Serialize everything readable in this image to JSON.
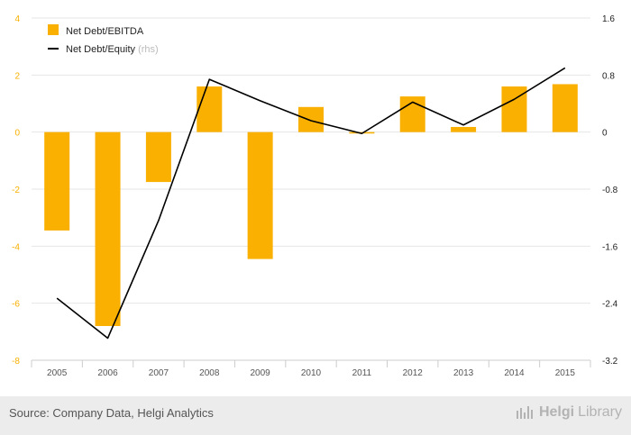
{
  "chart_data": {
    "type": "bar+line",
    "categories": [
      "2005",
      "2006",
      "2007",
      "2008",
      "2009",
      "2010",
      "2011",
      "2012",
      "2013",
      "2014",
      "2015"
    ],
    "series": [
      {
        "name": "Net Debt/EBITDA",
        "kind": "bar",
        "axis": "left",
        "color": "#f9b000",
        "values": [
          -3.45,
          -6.8,
          -1.75,
          1.6,
          -4.45,
          0.88,
          -0.05,
          1.25,
          0.18,
          1.6,
          1.68
        ]
      },
      {
        "name": "Net Debt/Equity",
        "kind": "line",
        "axis": "right",
        "color": "#000000",
        "values": [
          -2.33,
          -2.89,
          -1.24,
          0.74,
          0.44,
          0.16,
          -0.02,
          0.42,
          0.1,
          0.46,
          0.9
        ]
      }
    ],
    "legend": {
      "position": "top-left",
      "items": [
        {
          "label": "Net Debt/EBITDA",
          "suffix": ""
        },
        {
          "label": "Net Debt/Equity",
          "suffix": "(rhs)"
        }
      ]
    },
    "y_left": {
      "min": -8,
      "max": 4,
      "ticks": [
        -8,
        -6,
        -4,
        -2,
        0,
        2,
        4
      ],
      "tick_color": "#f9b000"
    },
    "y_right": {
      "min": -3.2,
      "max": 1.6,
      "ticks": [
        "-3.2",
        "-2.4",
        "-1.6",
        "-0.8",
        "0",
        "0.8",
        "1.6"
      ]
    },
    "grid": true,
    "gridline_color": "#e6e6e6"
  },
  "footer": {
    "source": "Source: Company Data, Helgi Analytics",
    "brand_bold": "Helgi",
    "brand_light": "Library"
  }
}
